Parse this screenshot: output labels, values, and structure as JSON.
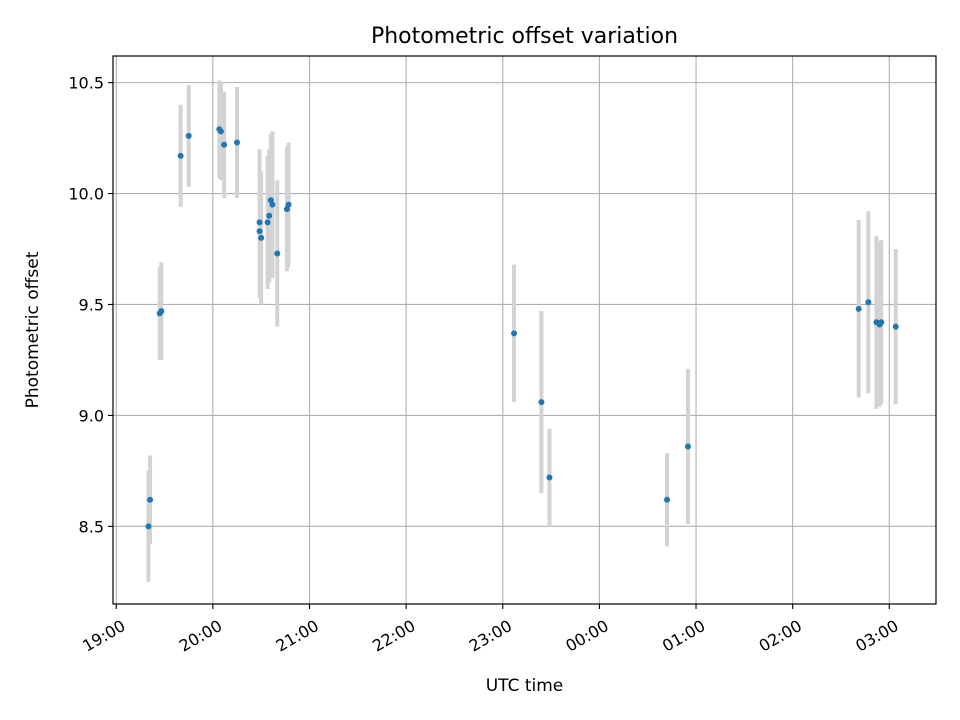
{
  "chart_data": {
    "type": "scatter",
    "title": "Photometric offset variation",
    "xlabel": "UTC time",
    "ylabel": "Photometric offset",
    "x_is_time": true,
    "xlim": [
      "18:58",
      "03:29"
    ],
    "ylim": [
      8.15,
      10.62
    ],
    "grid": true,
    "legend": "none",
    "x_ticks": [
      "19:00",
      "20:00",
      "21:00",
      "22:00",
      "23:00",
      "00:00",
      "01:00",
      "02:00",
      "03:00"
    ],
    "y_ticks": [
      8.5,
      9.0,
      9.5,
      10.0,
      10.5
    ],
    "colors": {
      "point": "#1f77b4",
      "errorbar": "#d3d3d3",
      "grid": "#b0b0b0"
    },
    "series": [
      {
        "x": [
          "19:20",
          "19:21",
          "19:27",
          "19:28",
          "19:40",
          "19:45",
          "20:04",
          "20:05",
          "20:07",
          "20:15",
          "20:29",
          "20:29",
          "20:30",
          "20:34",
          "20:35",
          "20:36",
          "20:37",
          "20:40",
          "20:46",
          "20:47",
          "23:07",
          "23:24",
          "23:29",
          "00:42",
          "00:55",
          "02:41",
          "02:47",
          "02:52",
          "02:54",
          "02:55",
          "03:04"
        ],
        "y": [
          8.5,
          8.62,
          9.46,
          9.47,
          10.17,
          10.26,
          10.29,
          10.28,
          10.22,
          10.23,
          9.87,
          9.83,
          9.8,
          9.87,
          9.9,
          9.97,
          9.95,
          9.73,
          9.93,
          9.95,
          9.37,
          9.06,
          8.72,
          8.62,
          8.86,
          9.48,
          9.51,
          9.42,
          9.41,
          9.42,
          9.4
        ],
        "err": [
          0.25,
          0.2,
          0.21,
          0.22,
          0.23,
          0.23,
          0.22,
          0.22,
          0.24,
          0.25,
          0.33,
          0.3,
          0.3,
          0.3,
          0.3,
          0.3,
          0.33,
          0.33,
          0.28,
          0.28,
          0.31,
          0.41,
          0.22,
          0.21,
          0.35,
          0.4,
          0.41,
          0.39,
          0.37,
          0.37,
          0.35
        ]
      }
    ]
  }
}
